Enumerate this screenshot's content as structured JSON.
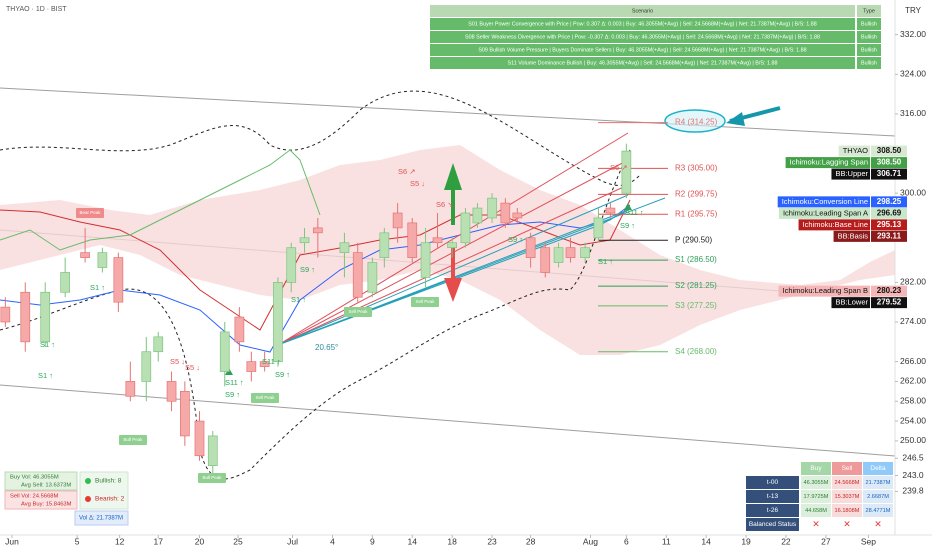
{
  "header": {
    "symbol": "THYAO · 1D · BIST",
    "currency": "TRY"
  },
  "chart_data": {
    "type": "candlestick",
    "x": [
      0.4,
      1.9,
      3.4,
      4.9,
      6.4,
      7.7,
      8.9,
      9.8,
      11.0,
      11.9,
      12.9,
      13.9,
      15.0,
      16.0,
      16.9,
      18.0,
      18.9,
      19.9,
      20.9,
      21.9,
      22.9,
      23.9,
      25.9,
      26.9,
      28.0,
      28.9,
      29.9,
      31.0,
      32.0,
      32.9,
      34.0,
      35.0,
      35.9,
      37.0,
      38.0,
      38.9,
      39.9,
      41.0,
      42.0,
      42.9,
      44.0,
      45.0,
      45.9,
      47.1
    ],
    "open": [
      277,
      280,
      270,
      280,
      288,
      285,
      287,
      262,
      262,
      268,
      262,
      260,
      254,
      245,
      264,
      275,
      266,
      266,
      266,
      282,
      290,
      293,
      288,
      288,
      280,
      287,
      296,
      294,
      283,
      291,
      289,
      290,
      294,
      295,
      298,
      296,
      291,
      289,
      286,
      289,
      287,
      291,
      297,
      300
    ],
    "high": [
      279,
      282,
      282,
      287,
      293,
      289,
      288,
      266,
      271,
      272,
      264,
      262,
      256,
      252,
      274,
      277,
      268,
      268,
      283,
      290,
      293,
      295,
      292,
      290,
      287,
      293,
      298,
      295,
      293,
      296,
      291,
      297,
      298,
      300,
      299,
      297,
      292,
      290,
      290,
      291,
      290,
      297,
      298,
      310
    ],
    "low": [
      273,
      268,
      269,
      279,
      286,
      284,
      276,
      258,
      258,
      266,
      256,
      249,
      246,
      243,
      261,
      268,
      262,
      264,
      265,
      280,
      288,
      287,
      283,
      278,
      279,
      285,
      290,
      286,
      281,
      289,
      287,
      289,
      293,
      294,
      293,
      294,
      285,
      283,
      285,
      286,
      286,
      290,
      295,
      299
    ],
    "close": [
      274,
      270,
      280,
      284,
      287,
      288,
      278,
      259,
      268,
      271,
      258,
      251,
      247,
      251,
      272,
      270,
      264,
      265,
      282,
      289,
      291,
      292,
      290,
      279,
      286,
      292,
      293,
      287,
      290,
      290,
      290,
      296,
      297,
      299,
      294,
      295,
      287,
      284,
      289,
      287,
      289,
      295,
      296,
      308.5
    ],
    "up_color": "#b9e0b2",
    "down_color": "#f5a9a9",
    "xlim": [
      0,
      67.3
    ],
    "xticks": [
      {
        "value": 0.9,
        "label": "Jun"
      },
      {
        "value": 5.8,
        "label": "5"
      },
      {
        "value": 9.0,
        "label": "12"
      },
      {
        "value": 11.9,
        "label": "17"
      },
      {
        "value": 15.0,
        "label": "20"
      },
      {
        "value": 17.9,
        "label": "25"
      },
      {
        "value": 22.0,
        "label": "Jul"
      },
      {
        "value": 25.0,
        "label": "4"
      },
      {
        "value": 28.0,
        "label": "9"
      },
      {
        "value": 31.0,
        "label": "14"
      },
      {
        "value": 34.0,
        "label": "18"
      },
      {
        "value": 37.0,
        "label": "23"
      },
      {
        "value": 39.9,
        "label": "28"
      },
      {
        "value": 44.4,
        "label": "Aug"
      },
      {
        "value": 47.1,
        "label": "6"
      },
      {
        "value": 50.1,
        "label": "11"
      },
      {
        "value": 53.1,
        "label": "14"
      },
      {
        "value": 56.1,
        "label": "19"
      },
      {
        "value": 59.1,
        "label": "22"
      },
      {
        "value": 62.1,
        "label": "27"
      },
      {
        "value": 65.3,
        "label": "Sep"
      }
    ],
    "ylim": [
      231,
      339
    ],
    "yticks": [
      {
        "value": 332,
        "label": "332.00"
      },
      {
        "value": 324,
        "label": "324.00"
      },
      {
        "value": 316,
        "label": "316.00"
      },
      {
        "value": 300,
        "label": "300.00"
      },
      {
        "value": 282,
        "label": "282.00"
      },
      {
        "value": 274,
        "label": "274.00"
      },
      {
        "value": 266,
        "label": "266.00"
      },
      {
        "value": 262,
        "label": "262.00"
      },
      {
        "value": 258,
        "label": "258.00"
      },
      {
        "value": 254,
        "label": "254.00"
      },
      {
        "value": 250,
        "label": "250.00"
      },
      {
        "value": 246.5,
        "label": "246.5"
      },
      {
        "value": 243,
        "label": "243.0"
      },
      {
        "value": 239.8,
        "label": "239.8"
      }
    ],
    "grid": false,
    "pivot_levels": [
      {
        "label": "R4 (314.25)",
        "value": 314.25,
        "color": "#e57373"
      },
      {
        "label": "R3 (305.00)",
        "value": 305,
        "color": "#e05252"
      },
      {
        "label": "R2 (299.75)",
        "value": 299.75,
        "color": "#e05252"
      },
      {
        "label": "R1 (295.75)",
        "value": 295.75,
        "color": "#e05252"
      },
      {
        "label": "P (290.50)",
        "value": 290.5,
        "color": "#222222"
      },
      {
        "label": "S1 (286.50)",
        "value": 286.5,
        "color": "#2e9e5a"
      },
      {
        "label": "S2 (281.25)",
        "value": 281.25,
        "color": "#2e9e5a"
      },
      {
        "label": "S3 (277.25)",
        "value": 277.25,
        "color": "#66bb6a"
      },
      {
        "label": "S4 (268.00)",
        "value": 268,
        "color": "#66bb6a"
      }
    ],
    "price_labels": [
      {
        "name": "THYAO",
        "value": 308.5,
        "label": "308.50",
        "color": "#d7e8d3",
        "text_color": "#111111"
      },
      {
        "name": "Ichimoku:Lagging Span",
        "value": 308.5,
        "label": "308.50",
        "color": "#43a047",
        "text_color": "#ffffff"
      },
      {
        "name": "BB:Upper",
        "value": 306.71,
        "label": "306.71",
        "color": "#111111",
        "text_color": "#ffffff"
      },
      {
        "name": "Ichimoku:Conversion Line",
        "value": 298.25,
        "label": "298.25",
        "color": "#2962ff",
        "text_color": "#ffffff"
      },
      {
        "name": "Ichimoku:Leading Span A",
        "value": 296.69,
        "label": "296.69",
        "color": "#c8e6c9",
        "text_color": "#111111"
      },
      {
        "name": "Ichimoku:Base Line",
        "value": 295.13,
        "label": "295.13",
        "color": "#b71c1c",
        "text_color": "#ffffff"
      },
      {
        "name": "BB:Basis",
        "value": 293.11,
        "label": "293.11",
        "color": "#8b1a1a",
        "text_color": "#ffffff"
      },
      {
        "name": "Ichimoku:Leading Span B",
        "value": 280.23,
        "label": "280.23",
        "color": "#f4b6b6",
        "text_color": "#111111"
      },
      {
        "name": "BB:Lower",
        "value": 279.52,
        "label": "279.52",
        "color": "#111111",
        "text_color": "#ffffff"
      }
    ],
    "angle_label": "20.65°",
    "annotations": [
      "S1 ↑",
      "S1 ↑",
      "S1 ↑",
      "S5 ↓",
      "S5 ↓",
      "S11 ↑",
      "S9 ↑",
      "S11 ↑",
      "S9 ↑",
      "S9 ↑",
      "S1 ↑",
      "S6 ↗",
      "S5 ↓",
      "S6 ↘",
      "S9 ↑",
      "S6 ↗",
      "S11 ↑",
      "S9 ↑",
      "S1 ↑"
    ],
    "peak_labels": [
      "Bear Peak",
      "Bull Peak",
      "Bull Peak",
      "Sell Peak",
      "Sell Peak",
      "Sell Peak"
    ]
  },
  "scenario_table": {
    "headers": [
      "Scenario",
      "Type"
    ],
    "rows": [
      [
        "S01 Buyer Power Convergence with Price | Pow: 0.307 Δ: 0.003 | Buy: 46.3055M(+Avg) | Sell: 24.5668M(+Avg) | Net: 21.7387M(+Avg) | B/S: 1.88",
        "Bullish"
      ],
      [
        "S08 Seller Weakness Divergence with Price | Pow: -0.307 Δ: 0.003 | Buy: 46.3055M(+Avg) | Sell: 24.5668M(+Avg) | Net: 21.7387M(+Avg) | B/S: 1.88",
        "Bullish"
      ],
      [
        "S09 Bullish Volume Pressure | Buyers Dominate Sellers | Buy: 46.3055M(+Avg) | Sell: 24.5668M(+Avg) | Net: 21.7387M(+Avg) | B/S: 1.88",
        "Bullish"
      ],
      [
        "S11 Volume Dominance Bullish | Buy: 46.3055M(+Avg) | Sell: 24.5668M(+Avg) | Net: 21.7387M(+Avg) | B/S: 1.88",
        "Bullish"
      ]
    ]
  },
  "flow_table": {
    "headers": [
      "Buy",
      "Sell",
      "Delta"
    ],
    "rows": [
      {
        "label": "t-00",
        "cells": [
          "46.3055M",
          "24.5668M",
          "21.7387M"
        ]
      },
      {
        "label": "t-13",
        "cells": [
          "17.9725M",
          "15.3037M",
          "2.6687M"
        ]
      },
      {
        "label": "t-26",
        "cells": [
          "44.658M",
          "16.1808M",
          "28.4771M"
        ]
      },
      {
        "label": "Balanced Status",
        "cells": [
          "✕",
          "✕",
          "✕"
        ]
      }
    ]
  },
  "summary": {
    "buy_vol": "Buy Vol: 46.3055M",
    "avg_sell": "Avg Sell: 13.6373M",
    "sell_vol": "Sell Vol: 24.5668M",
    "avg_buy": "Avg Buy: 15.8463M",
    "bullish": "Bullish: 8",
    "bearish": "Bearish: 2",
    "vol_delta": "Vol Δ: 21.7387M"
  }
}
